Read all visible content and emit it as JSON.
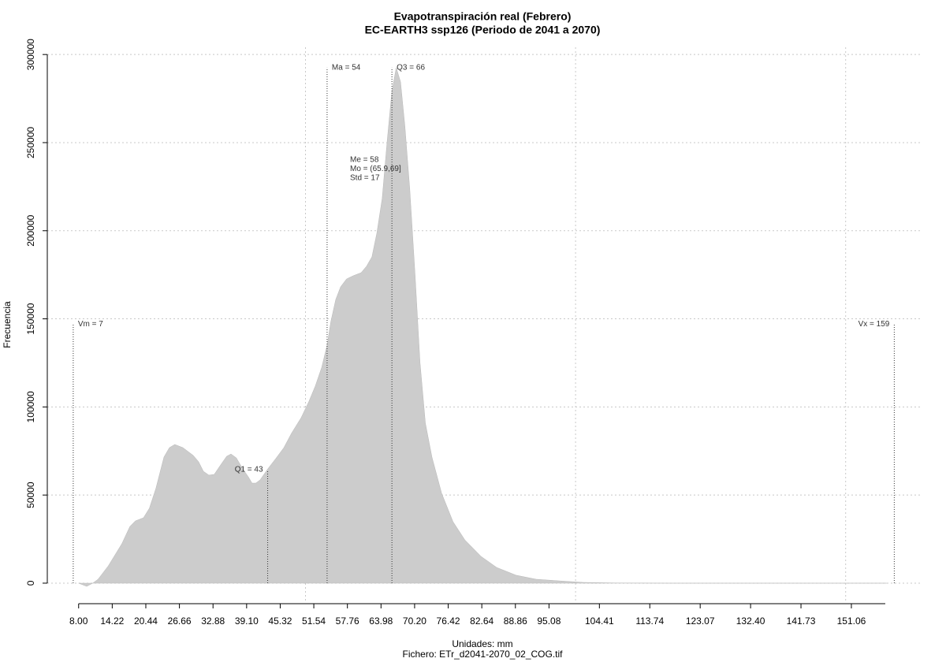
{
  "chart_data": {
    "type": "area",
    "title": "Evapotranspiración real (Febrero)",
    "subtitle": "EC-EARTH3 ssp126 (Periodo de 2041 a 2070)",
    "x_label": "Unidades: mm",
    "file_label": "Fichero: ETr_d2041-2070_02_COG.tif",
    "y_label": "Frecuencia",
    "color": "#cccccc",
    "x": [
      8.0,
      9.5,
      10.6,
      11.6,
      13.5,
      16.0,
      17.5,
      18.5,
      20.0,
      21.1,
      22.3,
      23.8,
      24.8,
      25.8,
      27.3,
      29.2,
      30.2,
      31.1,
      32.1,
      33.1,
      34.3,
      35.4,
      36.2,
      37.2,
      38.4,
      39.4,
      40.1,
      40.8,
      41.6,
      43.0,
      44.5,
      46.0,
      47.4,
      49.2,
      50.6,
      51.8,
      53.0,
      54.0,
      54.7,
      55.6,
      56.5,
      57.6,
      58.8,
      60.3,
      61.3,
      62.3,
      63.2,
      64.2,
      65.1,
      66.0,
      66.8,
      67.6,
      68.4,
      69.3,
      70.3,
      71.2,
      72.2,
      73.4,
      75.2,
      77.3,
      79.5,
      82.5,
      85.4,
      89.0,
      92.7,
      97.1,
      101.4,
      107.3,
      117.5,
      157.6
    ],
    "values": [
      0,
      -1800,
      0,
      2200,
      9800,
      22400,
      32200,
      35300,
      37100,
      42500,
      53700,
      71600,
      76900,
      78700,
      76900,
      72500,
      68900,
      63500,
      61300,
      61700,
      67100,
      72000,
      73300,
      71100,
      64800,
      60400,
      56800,
      56800,
      58600,
      64800,
      70700,
      76900,
      85000,
      93900,
      102900,
      111800,
      122500,
      135100,
      148500,
      161000,
      168200,
      172600,
      174400,
      176200,
      179800,
      185200,
      198600,
      218300,
      250400,
      279100,
      292500,
      284500,
      259400,
      223600,
      174400,
      125200,
      90800,
      71600,
      51000,
      34900,
      24600,
      15200,
      8900,
      4500,
      2200,
      1300,
      450,
      100,
      0,
      0
    ],
    "xlim": [
      2.2,
      164.2
    ],
    "ylim": [
      -11200,
      304100
    ],
    "xticks": [
      {
        "value": 8.0,
        "label": "8.00"
      },
      14.22,
      20.44,
      26.66,
      32.88,
      {
        "value": 39.1,
        "label": "39.10"
      },
      45.32,
      51.54,
      57.76,
      63.98,
      {
        "value": 70.2,
        "label": "70.20"
      },
      76.42,
      82.64,
      88.86,
      95.08,
      104.41,
      113.74,
      123.07,
      {
        "value": 132.4,
        "label": "132.40"
      },
      141.73,
      151.06
    ],
    "yticks": [
      0,
      50000,
      100000,
      150000,
      200000,
      250000,
      300000
    ],
    "xgrid": [
      50,
      100,
      150
    ],
    "grid": true,
    "annotations": [
      {
        "label": "Vm = 7",
        "x": 7,
        "height": 147000
      },
      {
        "label": "Q1 = 43",
        "x": 43,
        "height": 64400
      },
      {
        "label": "Ma = 54",
        "x": 54,
        "height": 292500
      },
      {
        "label": "Q3 = 66",
        "x": 66,
        "height": 292500
      },
      {
        "label": "Vx = 159",
        "x": 159,
        "height": 147000
      }
    ],
    "stats": [
      "Me = 58",
      "Mo = (65.9,69]",
      "Std = 17"
    ]
  }
}
